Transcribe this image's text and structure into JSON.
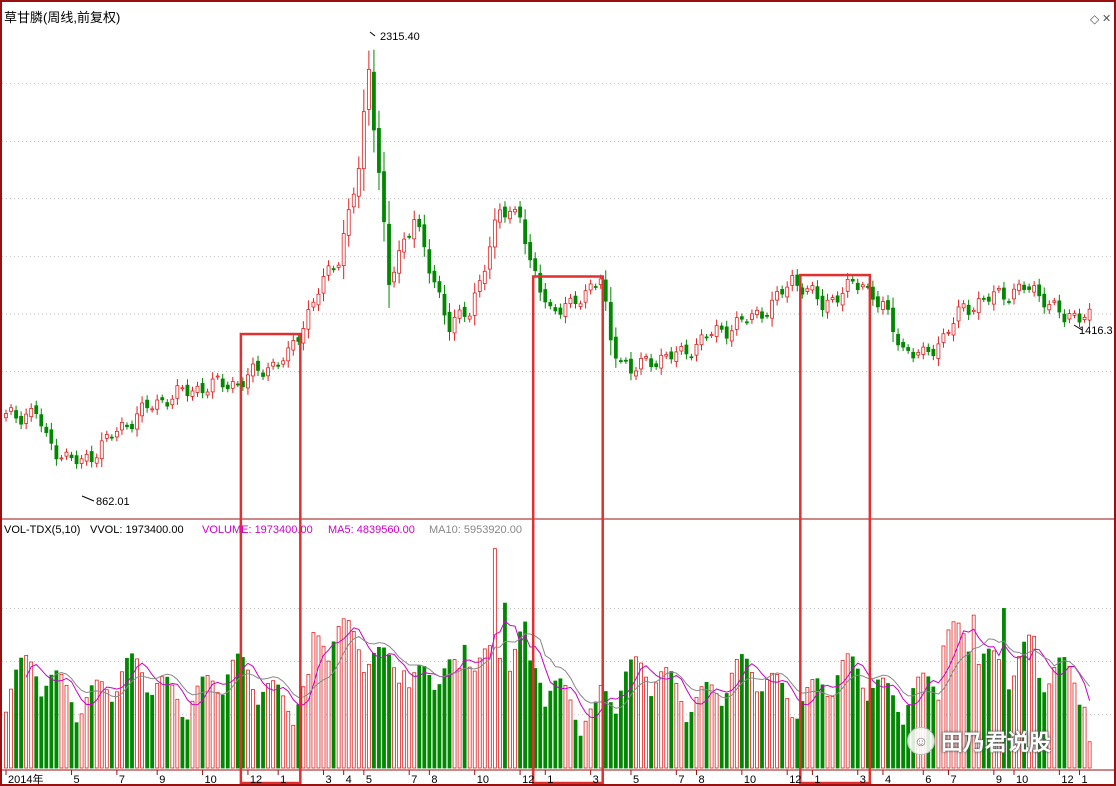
{
  "window": {
    "title": "草甘膦(周线,前复权)"
  },
  "colors": {
    "up": "#e02020",
    "down": "#008800",
    "ma5": "#cc00cc",
    "ma10": "#888888",
    "highlight_box": "#e03030",
    "frame": "#9a1010"
  },
  "icons": {
    "diamond": "◇",
    "close": "✕",
    "wechat": "☺"
  },
  "annotations": {
    "high_label": "2315.40",
    "low_label": "862.01",
    "last_price_label": "1416.3"
  },
  "volume_header": {
    "indicator": "VOL-TDX(5,10)",
    "vvol": "VVOL: 1973400.00",
    "volume": "VOLUME: 1973400.00",
    "ma5": "MA5: 4839560.00",
    "ma10": "MA10: 5953920.00"
  },
  "watermark": {
    "text": "田乃君说股"
  },
  "chart_data": {
    "type": "candlestick",
    "title": "草甘膦(周线,前复权)",
    "period": "weekly",
    "start_week": "2014年第1周",
    "y_price_range": [
      760,
      2380
    ],
    "y_volume_range": [
      0,
      17000000
    ],
    "x_axis_labels": [
      {
        "label": "2014年",
        "index": 0
      },
      {
        "label": "5",
        "index": 13
      },
      {
        "label": "7",
        "index": 22
      },
      {
        "label": "9",
        "index": 30
      },
      {
        "label": "10",
        "index": 39
      },
      {
        "label": "12",
        "index": 48
      },
      {
        "label": "1",
        "index": 54
      },
      {
        "label": "3",
        "index": 63
      },
      {
        "label": "4",
        "index": 67
      },
      {
        "label": "5",
        "index": 71
      },
      {
        "label": "7",
        "index": 80
      },
      {
        "label": "8",
        "index": 84
      },
      {
        "label": "10",
        "index": 93
      },
      {
        "label": "12",
        "index": 102
      },
      {
        "label": "1",
        "index": 107
      },
      {
        "label": "3",
        "index": 116
      },
      {
        "label": "5",
        "index": 124
      },
      {
        "label": "7",
        "index": 133
      },
      {
        "label": "8",
        "index": 137
      },
      {
        "label": "10",
        "index": 146
      },
      {
        "label": "12",
        "index": 155
      },
      {
        "label": "1",
        "index": 160
      },
      {
        "label": "3",
        "index": 169
      },
      {
        "label": "4",
        "index": 174
      },
      {
        "label": "6",
        "index": 182
      },
      {
        "label": "7",
        "index": 187
      },
      {
        "label": "9",
        "index": 196
      },
      {
        "label": "10",
        "index": 200
      },
      {
        "label": "12",
        "index": 209
      },
      {
        "label": "1",
        "index": 213
      }
    ],
    "high": {
      "value": 2315.4,
      "index": 72
    },
    "low": {
      "value": 862.01,
      "index": 15
    },
    "last_close": 1416.3,
    "volume_indicator": {
      "name": "VOL-TDX(5,10)",
      "vvol": 1973400.0,
      "volume": 1973400.0,
      "ma5": 4839560.0,
      "ma10": 5953920.0
    },
    "highlight_ranges": [
      {
        "from": 47,
        "to": 58,
        "price_top": 1330
      },
      {
        "from": 105,
        "to": 118,
        "price_top": 1530
      },
      {
        "from": 158,
        "to": 171,
        "price_top": 1535
      }
    ]
  }
}
